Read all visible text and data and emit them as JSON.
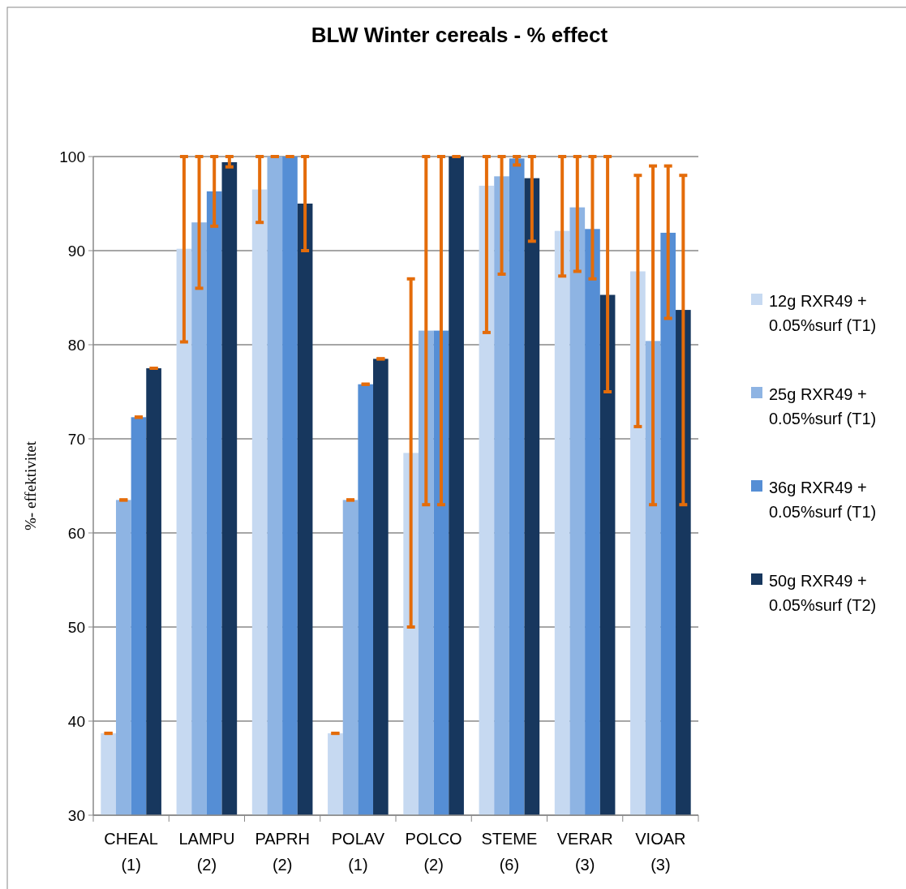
{
  "chart_data": {
    "type": "bar",
    "title": "BLW Winter cereals - % effect",
    "ylabel": "%- effektivitet",
    "categories": [
      "CHEAL (1)",
      "LAMPU (2)",
      "PAPRH (2)",
      "POLAV (1)",
      "POLCO (2)",
      "STEME (6)",
      "VERAR (3)",
      "VIOAR (3)"
    ],
    "series": [
      {
        "name": "12g RXR49 + 0.05%surf (T1)",
        "color": "#c6d9f1",
        "values": [
          38.7,
          90.2,
          96.5,
          38.7,
          68.5,
          96.9,
          92.1,
          87.8
        ],
        "errors": [
          [
            38.7,
            38.7
          ],
          [
            80.3,
            100
          ],
          [
            93,
            100
          ],
          [
            38.7,
            38.7
          ],
          [
            50,
            87
          ],
          [
            81.3,
            100
          ],
          [
            87.3,
            100
          ],
          [
            71.3,
            98
          ]
        ]
      },
      {
        "name": "25g RXR49 + 0.05%surf (T1)",
        "color": "#8eb4e3",
        "values": [
          63.5,
          93,
          100,
          63.5,
          81.5,
          97.9,
          94.6,
          80.4
        ],
        "errors": [
          [
            63.5,
            63.5
          ],
          [
            86,
            100
          ],
          [
            100,
            100
          ],
          [
            63.5,
            63.5
          ],
          [
            63,
            100
          ],
          [
            87.5,
            100
          ],
          [
            87.8,
            100
          ],
          [
            63,
            99
          ]
        ]
      },
      {
        "name": "36g RXR49 + 0.05%surf (T1)",
        "color": "#558ed5",
        "values": [
          72.3,
          96.3,
          100,
          75.8,
          81.5,
          99.8,
          92.3,
          91.9
        ],
        "errors": [
          [
            72.3,
            72.3
          ],
          [
            92.6,
            100
          ],
          [
            100,
            100
          ],
          [
            75.8,
            75.8
          ],
          [
            63,
            100
          ],
          [
            99.1,
            100
          ],
          [
            87,
            100
          ],
          [
            82.8,
            99
          ]
        ]
      },
      {
        "name": "50g RXR49 + 0.05%surf (T2)",
        "color": "#17375e",
        "values": [
          77.5,
          99.4,
          95,
          78.5,
          100,
          97.7,
          85.3,
          83.7
        ],
        "errors": [
          [
            77.5,
            77.5
          ],
          [
            98.9,
            100
          ],
          [
            90,
            100
          ],
          [
            78.5,
            78.5
          ],
          [
            100,
            100
          ],
          [
            91,
            100
          ],
          [
            75,
            100
          ],
          [
            63,
            98
          ]
        ]
      }
    ],
    "ylim": [
      30,
      100
    ],
    "yticks": [
      30,
      40,
      50,
      60,
      70,
      80,
      90,
      100
    ],
    "grid": "y",
    "legend": "right"
  }
}
